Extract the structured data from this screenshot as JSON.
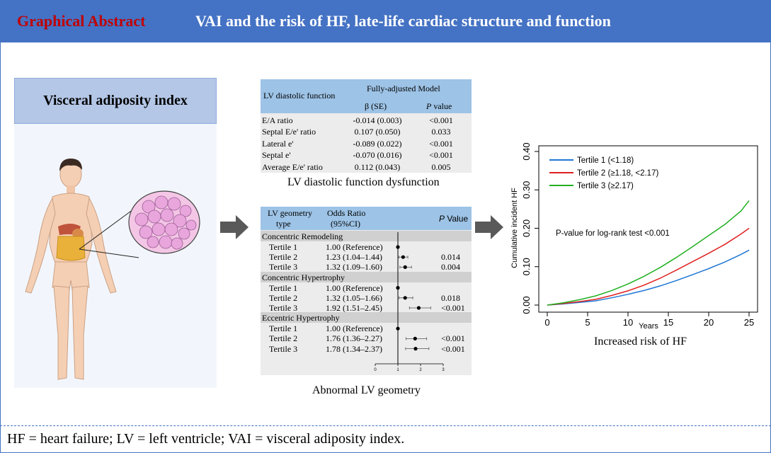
{
  "header": {
    "label": "Graphical Abstract",
    "title": "VAI and the risk of HF, late-life cardiac structure and function"
  },
  "left_panel": {
    "title": "Visceral adiposity index"
  },
  "diastolic_table": {
    "col0": "LV diastolic function",
    "model": "Fully-adjusted Model",
    "beta_header": "β (SE)",
    "p_header_italic": "P",
    "p_header_rest": " value",
    "rows": [
      {
        "name": "E/A ratio",
        "beta": "-0.014 (0.003)",
        "p": "<0.001"
      },
      {
        "name": "Septal E/e' ratio",
        "beta": "0.107 (0.050)",
        "p": "0.033"
      },
      {
        "name": "Lateral e'",
        "beta": "-0.089 (0.022)",
        "p": "<0.001"
      },
      {
        "name": "Septal e'",
        "beta": "-0.070 (0.016)",
        "p": "<0.001"
      },
      {
        "name": "Average E/e' ratio",
        "beta": "0.112 (0.043)",
        "p": "0.005"
      }
    ],
    "caption": "LV diastolic function dysfunction"
  },
  "geometry_table": {
    "col0_line1": "LV geometry",
    "col0_line2": "type",
    "or_line1": "Odds Ratio",
    "or_line2": "(95%CI)",
    "p_italic": "P",
    "p_rest": " Value",
    "sections": [
      {
        "title": "Concentric Remodeling",
        "rows": [
          {
            "name": "Tertile 1",
            "or": "1.00 (Reference)",
            "p": "",
            "est": 1.0,
            "lo": 1.0,
            "hi": 1.0
          },
          {
            "name": "Tertile 2",
            "or": "1.23 (1.04–1.44)",
            "p": "0.014",
            "est": 1.23,
            "lo": 1.04,
            "hi": 1.44
          },
          {
            "name": "Tertile 3",
            "or": "1.32 (1.09–1.60)",
            "p": "0.004",
            "est": 1.32,
            "lo": 1.09,
            "hi": 1.6
          }
        ]
      },
      {
        "title": "Concentric Hypertrophy",
        "rows": [
          {
            "name": "Tertile 1",
            "or": "1.00 (Reference)",
            "p": "",
            "est": 1.0,
            "lo": 1.0,
            "hi": 1.0
          },
          {
            "name": "Tertile 2",
            "or": "1.32 (1.05–1.66)",
            "p": "0.018",
            "est": 1.32,
            "lo": 1.05,
            "hi": 1.66
          },
          {
            "name": "Tertile 3",
            "or": "1.92 (1.51–2.45)",
            "p": "<0.001",
            "est": 1.92,
            "lo": 1.51,
            "hi": 2.45
          }
        ]
      },
      {
        "title": "Eccentric Hypertrophy",
        "rows": [
          {
            "name": "Tertile 1",
            "or": "1.00 (Reference)",
            "p": "",
            "est": 1.0,
            "lo": 1.0,
            "hi": 1.0
          },
          {
            "name": "Tertile 2",
            "or": "1.76 (1.36–2.27)",
            "p": "<0.001",
            "est": 1.76,
            "lo": 1.36,
            "hi": 2.27
          },
          {
            "name": "Tertile 3",
            "or": "1.78 (1.34–2.37)",
            "p": "<0.001",
            "est": 1.78,
            "lo": 1.34,
            "hi": 2.37
          }
        ]
      }
    ],
    "axis_ticks": [
      "0",
      "1",
      "2",
      "3"
    ],
    "caption": "Abnormal LV geometry"
  },
  "chart_data": {
    "type": "line",
    "title": "",
    "xlabel": "Years",
    "ylabel": "Cumulative incident HF",
    "xlim": [
      0,
      25
    ],
    "ylim": [
      0,
      0.4
    ],
    "x_ticks": [
      "0",
      "5",
      "10",
      "15",
      "20",
      "25"
    ],
    "y_ticks": [
      "0.00",
      "0.10",
      "0.20",
      "0.30",
      "0.40"
    ],
    "annotation": "P-value for log-rank test <0.001",
    "caption": "Increased risk of HF",
    "series": [
      {
        "name": "Tertile 1 (<1.18)",
        "color": "#1f77d4",
        "x": [
          0,
          2,
          4,
          6,
          8,
          10,
          12,
          14,
          16,
          18,
          20,
          22,
          24,
          25
        ],
        "values": [
          0,
          0.003,
          0.007,
          0.011,
          0.019,
          0.028,
          0.038,
          0.05,
          0.064,
          0.079,
          0.095,
          0.112,
          0.132,
          0.143
        ]
      },
      {
        "name": "Tertile 2 (≥1.18, <2.17)",
        "color": "#e02020",
        "x": [
          0,
          2,
          4,
          6,
          8,
          10,
          12,
          14,
          16,
          18,
          20,
          22,
          24,
          25
        ],
        "values": [
          0,
          0.004,
          0.009,
          0.015,
          0.025,
          0.037,
          0.052,
          0.07,
          0.091,
          0.113,
          0.135,
          0.158,
          0.185,
          0.2
        ]
      },
      {
        "name": "Tertile 3 (≥2.17)",
        "color": "#22b022",
        "x": [
          0,
          2,
          4,
          6,
          8,
          10,
          12,
          14,
          16,
          18,
          20,
          22,
          24,
          25
        ],
        "values": [
          0,
          0.006,
          0.014,
          0.024,
          0.038,
          0.055,
          0.075,
          0.098,
          0.124,
          0.152,
          0.181,
          0.21,
          0.245,
          0.272
        ]
      }
    ]
  },
  "footer": {
    "text": "HF = heart failure; LV = left ventricle; VAI = visceral adiposity index."
  },
  "colors": {
    "header_bg": "#4472c4",
    "header_label": "#c00000",
    "table_header": "#9dc3e6",
    "panel_title": "#b4c7e7"
  }
}
